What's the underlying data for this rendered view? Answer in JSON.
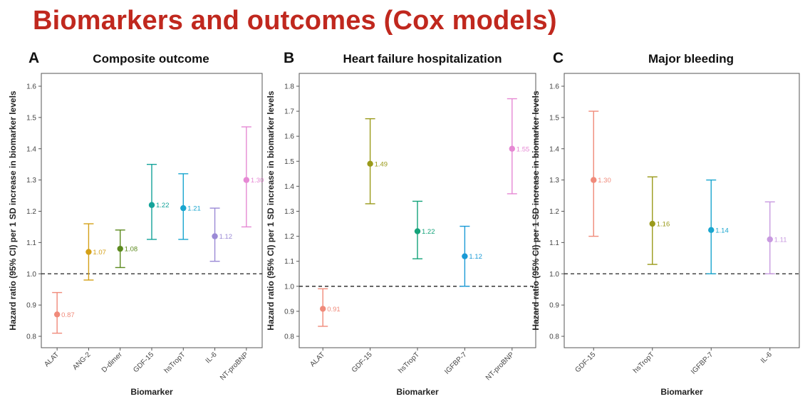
{
  "title": "Biomarkers and outcomes (Cox models)",
  "chart_data": [
    {
      "type": "scatter",
      "panel": "A",
      "title": "Composite outcome",
      "xlabel": "Biomarker",
      "ylabel": "Hazard ratio (95% CI) per 1 SD increase in biomarker levels",
      "ylim": [
        0.8,
        1.6
      ],
      "yticks": [
        "0.8",
        "0.9",
        "1.0",
        "1.1",
        "1.2",
        "1.3",
        "1.4",
        "1.5",
        "1.6"
      ],
      "reference_line": 1.0,
      "categories": [
        "ALAT",
        "ANG-2",
        "D-dimer",
        "GDF-15",
        "hsTropT",
        "IL-6",
        "NT-proBNP"
      ],
      "values": [
        0.87,
        1.07,
        1.08,
        1.22,
        1.21,
        1.12,
        1.3
      ],
      "lower": [
        0.81,
        0.98,
        1.02,
        1.11,
        1.11,
        1.04,
        1.15
      ],
      "upper": [
        0.94,
        1.16,
        1.14,
        1.35,
        1.32,
        1.21,
        1.47
      ],
      "labels": [
        "0.87",
        "1.07",
        "1.08",
        "1.22",
        "1.21",
        "1.12",
        "1.30"
      ],
      "colors": [
        "#f08a7a",
        "#d4a017",
        "#5c8a1e",
        "#14a39a",
        "#1aa6cf",
        "#9b8ad6",
        "#e689d4"
      ]
    },
    {
      "type": "scatter",
      "panel": "B",
      "title": "Heart failure hospitalization",
      "xlabel": "Biomarker",
      "ylabel": "Hazard ratio (95% CI) per 1 SD increase in biomarker levels",
      "ylim": [
        0.8,
        1.8
      ],
      "yticks": [
        "0.8",
        "0.9",
        "1.0",
        "1.1",
        "1.2",
        "1.3",
        "1.4",
        "1.5",
        "1.6",
        "1.7",
        "1.8"
      ],
      "reference_line": 1.0,
      "categories": [
        "ALAT",
        "GDF-15",
        "hsTropT",
        "IGFBP-7",
        "NT-proBNP"
      ],
      "values": [
        0.91,
        1.49,
        1.22,
        1.12,
        1.55
      ],
      "lower": [
        0.84,
        1.33,
        1.11,
        1.0,
        1.37
      ],
      "upper": [
        0.99,
        1.67,
        1.34,
        1.24,
        1.75
      ],
      "labels": [
        "0.91",
        "1.49",
        "1.22",
        "1.12",
        "1.55"
      ],
      "colors": [
        "#f08a7a",
        "#9a9a1a",
        "#14a37a",
        "#1a9ad6",
        "#e689d4"
      ]
    },
    {
      "type": "scatter",
      "panel": "C",
      "title": "Major bleeding",
      "xlabel": "Biomarker",
      "ylabel": "Hazard ratio (95% CI) per 1 SD increase in biomarker levels",
      "ylim": [
        0.8,
        1.6
      ],
      "yticks": [
        "0.8",
        "0.9",
        "1.0",
        "1.1",
        "1.2",
        "1.3",
        "1.4",
        "1.5",
        "1.6"
      ],
      "reference_line": 1.0,
      "categories": [
        "GDF-15",
        "hsTropT",
        "IGFBP-7",
        "IL-6"
      ],
      "values": [
        1.3,
        1.16,
        1.14,
        1.11
      ],
      "lower": [
        1.12,
        1.03,
        1.0,
        1.0
      ],
      "upper": [
        1.52,
        1.31,
        1.3,
        1.23
      ],
      "labels": [
        "1.30",
        "1.16",
        "1.14",
        "1.11"
      ],
      "colors": [
        "#f08a7a",
        "#9a9a1a",
        "#1aa6cf",
        "#c89ae0"
      ]
    }
  ]
}
